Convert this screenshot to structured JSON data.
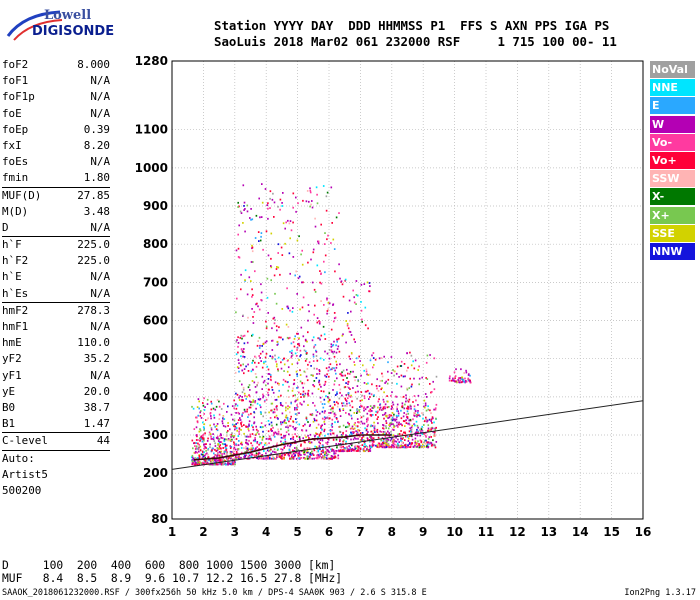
{
  "logo": {
    "line1": "Lowell",
    "line2": "DIGISONDE"
  },
  "header": {
    "line1": "Station YYYY DAY  DDD HHMMSS P1  FFS S AXN PPS IGA PS",
    "line2": "SaoLuis 2018 Mar02 061 232000 RSF     1 715 100 00- 11"
  },
  "params": [
    {
      "label": "foF2",
      "value": "8.000"
    },
    {
      "label": "foF1",
      "value": "N/A"
    },
    {
      "label": "foF1p",
      "value": "N/A"
    },
    {
      "label": "foE",
      "value": "N/A"
    },
    {
      "label": "foEp",
      "value": "0.39"
    },
    {
      "label": "fxI",
      "value": "8.20"
    },
    {
      "label": "foEs",
      "value": "N/A"
    },
    {
      "label": "fmin",
      "value": "1.80"
    },
    {
      "sep": true
    },
    {
      "label": "MUF(D)",
      "value": "27.85"
    },
    {
      "label": "M(D)",
      "value": "3.48"
    },
    {
      "label": "D",
      "value": "N/A"
    },
    {
      "sep": true
    },
    {
      "label": "h`F",
      "value": "225.0"
    },
    {
      "label": "h`F2",
      "value": "225.0"
    },
    {
      "label": "h`E",
      "value": "N/A"
    },
    {
      "label": "h`Es",
      "value": "N/A"
    },
    {
      "sep": true
    },
    {
      "label": "hmF2",
      "value": "278.3"
    },
    {
      "label": "hmF1",
      "value": "N/A"
    },
    {
      "label": "hmE",
      "value": "110.0"
    },
    {
      "label": "yF2",
      "value": "35.2"
    },
    {
      "label": "yF1",
      "value": "N/A"
    },
    {
      "label": "yE",
      "value": "20.0"
    },
    {
      "label": "B0",
      "value": "38.7"
    },
    {
      "label": "B1",
      "value": "1.47"
    },
    {
      "sep": true
    },
    {
      "label": "C-level",
      "value": "44"
    },
    {
      "sep": true
    },
    {
      "label": "Auto:",
      "value": ""
    },
    {
      "label": "Artist5",
      "value": ""
    },
    {
      "label": "500200",
      "value": ""
    }
  ],
  "legend": [
    {
      "label": "NoVal",
      "color": "#a0a0a0"
    },
    {
      "label": "NNE",
      "color": "#00e5ff"
    },
    {
      "label": "E",
      "color": "#2aa8ff"
    },
    {
      "label": "W",
      "color": "#b400b4"
    },
    {
      "label": "Vo-",
      "color": "#ff3aa0"
    },
    {
      "label": "Vo+",
      "color": "#ff0038"
    },
    {
      "label": "SSW",
      "color": "#ffb4b4"
    },
    {
      "label": "X-",
      "color": "#007800"
    },
    {
      "label": "X+",
      "color": "#78c850"
    },
    {
      "label": "SSE",
      "color": "#d2d200"
    },
    {
      "label": "NNW",
      "color": "#1414dc"
    }
  ],
  "footer": {
    "line1": "D     100  200  400  600  800 1000 1500 3000 [km]",
    "line2": "MUF   8.4  8.5  8.9  9.6 10.7 12.2 16.5 27.8 [MHz]",
    "note": "SAAOK_2018061232000.RSF / 300fx256h 50 kHz 5.0 km / DPS-4 SAA0K 903 / 2.6 S 315.8 E",
    "version": "Ion2Png 1.3.17"
  },
  "chart_data": {
    "type": "scatter",
    "title": "",
    "xlabel": "",
    "ylabel": "",
    "xlim": [
      1,
      16
    ],
    "ylim": [
      80,
      1280
    ],
    "x_ticks": [
      1,
      2,
      3,
      4,
      5,
      6,
      7,
      8,
      9,
      10,
      11,
      12,
      13,
      14,
      15,
      16
    ],
    "y_ticks": [
      80,
      200,
      300,
      400,
      500,
      600,
      700,
      800,
      900,
      1000,
      1100,
      1280
    ],
    "grid": true,
    "clusters": [
      {
        "x": [
          1.6,
          3.0
        ],
        "y": [
          225,
          400
        ]
      },
      {
        "x": [
          3.0,
          6.3
        ],
        "y": [
          240,
          960
        ]
      },
      {
        "x": [
          6.3,
          7.3
        ],
        "y": [
          260,
          720
        ]
      },
      {
        "x": [
          7.3,
          9.4
        ],
        "y": [
          270,
          520
        ]
      },
      {
        "x": [
          9.8,
          10.5
        ],
        "y": [
          440,
          480
        ]
      }
    ],
    "traces": [
      {
        "name": "",
        "x": [
          1.7,
          2.5,
          3.5,
          4.5,
          5.5,
          6.5,
          7.0,
          7.5,
          8.0
        ],
        "y": [
          235,
          240,
          255,
          275,
          290,
          295,
          300,
          300,
          300
        ]
      },
      {
        "name": "",
        "x": [
          1.0,
          16.0
        ],
        "y": [
          210,
          390
        ]
      }
    ]
  }
}
